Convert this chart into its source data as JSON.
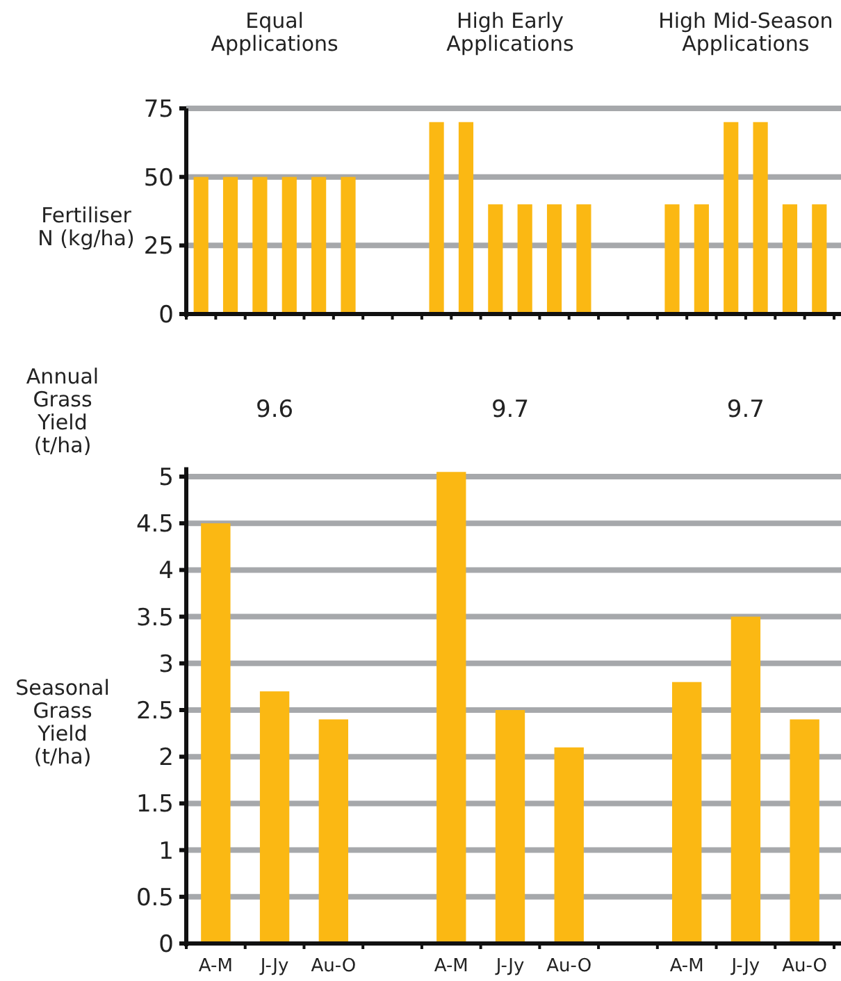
{
  "chart_data": [
    {
      "type": "bar",
      "ylabel": "Fertiliser N (kg/ha)",
      "annotations": [
        "Equal Applications",
        "High Early Applications",
        "High Mid-Season Applications"
      ],
      "categories": [
        null,
        null,
        null,
        null,
        null,
        null,
        null,
        null,
        null,
        null,
        null,
        null,
        null,
        null,
        null,
        null,
        null,
        null,
        null,
        null,
        null,
        null
      ],
      "values": [
        50,
        50,
        50,
        50,
        50,
        50,
        null,
        null,
        70,
        70,
        40,
        40,
        40,
        40,
        null,
        null,
        40,
        40,
        70,
        70,
        40,
        40
      ],
      "color": "#fbb813",
      "ylim": [
        0,
        75
      ],
      "yticks": [
        0,
        25,
        50,
        75
      ],
      "grid": "y"
    },
    {
      "type": "bar",
      "ylabel": "Seasonal Grass Yield (t/ha)",
      "annotations": [
        "Annual Grass Yield (t/ha)",
        "9.6",
        "9.7",
        "9.7"
      ],
      "categories": [
        "A-M",
        "J-Jy",
        "Au-O",
        null,
        "A-M",
        "J-Jy",
        "Au-O",
        null,
        "A-M",
        "J-Jy",
        "Au-O"
      ],
      "values": [
        4.5,
        2.7,
        2.4,
        null,
        5.05,
        2.5,
        2.1,
        null,
        2.8,
        3.5,
        2.4
      ],
      "color": "#fbb813",
      "ylim": [
        0,
        5.1
      ],
      "yticks": [
        0,
        0.5,
        1,
        1.5,
        2,
        2.5,
        3,
        3.5,
        4,
        4.5,
        5
      ],
      "grid": "y"
    }
  ]
}
